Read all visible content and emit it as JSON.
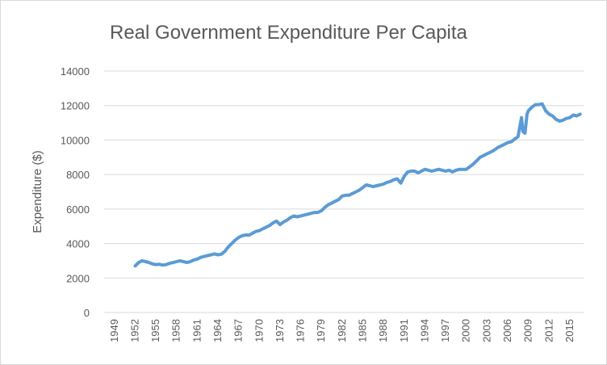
{
  "chart_data": {
    "type": "line",
    "title": "Real Government Expenditure Per Capita",
    "xlabel": "",
    "ylabel": "Expenditure ($)",
    "ylim": [
      0,
      14000
    ],
    "yticks": [
      0,
      2000,
      4000,
      6000,
      8000,
      10000,
      12000,
      14000
    ],
    "ytick_labels": [
      "0",
      "2000",
      "4000",
      "6000",
      "8000",
      "10000",
      "12000",
      "14000"
    ],
    "xlim": [
      1947.5,
      2017
    ],
    "xticks": [
      1949,
      1952,
      1955,
      1958,
      1961,
      1964,
      1967,
      1970,
      1973,
      1976,
      1979,
      1982,
      1985,
      1988,
      1991,
      1994,
      1997,
      2000,
      2003,
      2006,
      2009,
      2012,
      2015
    ],
    "xtick_labels": [
      "1949",
      "1952",
      "1955",
      "1958",
      "1961",
      "1964",
      "1967",
      "1970",
      "1973",
      "1976",
      "1979",
      "1982",
      "1985",
      "1988",
      "1991",
      "1994",
      "1997",
      "2000",
      "2003",
      "2006",
      "2009",
      "2012",
      "2015"
    ],
    "grid": true,
    "legend": "none",
    "series": [
      {
        "color": "#5b9bd5",
        "x": [
          1952.0,
          1952.5,
          1953.0,
          1953.5,
          1954.0,
          1954.5,
          1955.0,
          1955.5,
          1956.0,
          1956.5,
          1957.0,
          1957.5,
          1958.0,
          1958.5,
          1959.0,
          1959.5,
          1960.0,
          1960.5,
          1961.0,
          1961.5,
          1962.0,
          1962.5,
          1963.0,
          1963.5,
          1964.0,
          1964.5,
          1965.0,
          1965.5,
          1966.0,
          1966.5,
          1967.0,
          1967.5,
          1968.0,
          1968.5,
          1969.0,
          1969.5,
          1970.0,
          1970.5,
          1971.0,
          1971.5,
          1972.0,
          1972.5,
          1973.0,
          1973.5,
          1974.0,
          1974.5,
          1975.0,
          1975.5,
          1976.0,
          1976.5,
          1977.0,
          1977.5,
          1978.0,
          1978.5,
          1979.0,
          1979.5,
          1980.0,
          1980.5,
          1981.0,
          1981.5,
          1982.0,
          1982.5,
          1983.0,
          1983.5,
          1984.0,
          1984.5,
          1985.0,
          1985.5,
          1986.0,
          1986.5,
          1987.0,
          1987.5,
          1988.0,
          1988.5,
          1989.0,
          1989.5,
          1990.0,
          1990.5,
          1991.0,
          1991.5,
          1992.0,
          1992.5,
          1993.0,
          1993.5,
          1994.0,
          1994.5,
          1995.0,
          1995.5,
          1996.0,
          1996.5,
          1997.0,
          1997.5,
          1998.0,
          1998.5,
          1999.0,
          1999.5,
          2000.0,
          2000.5,
          2001.0,
          2001.5,
          2002.0,
          2002.5,
          2003.0,
          2003.5,
          2004.0,
          2004.5,
          2005.0,
          2005.5,
          2006.0,
          2006.5,
          2007.0,
          2007.5,
          2008.0,
          2008.2,
          2008.5,
          2008.8,
          2009.0,
          2009.5,
          2010.0,
          2010.5,
          2011.0,
          2011.5,
          2012.0,
          2012.5,
          2013.0,
          2013.5,
          2014.0,
          2014.5,
          2015.0,
          2015.5,
          2016.0,
          2016.5
        ],
        "y": [
          2700,
          2900,
          3000,
          2950,
          2900,
          2820,
          2780,
          2800,
          2750,
          2780,
          2850,
          2900,
          2950,
          3000,
          2950,
          2900,
          2950,
          3050,
          3100,
          3200,
          3250,
          3300,
          3350,
          3400,
          3350,
          3380,
          3550,
          3800,
          4000,
          4200,
          4350,
          4450,
          4500,
          4480,
          4600,
          4700,
          4750,
          4850,
          4950,
          5050,
          5200,
          5300,
          5100,
          5250,
          5350,
          5500,
          5600,
          5550,
          5600,
          5650,
          5700,
          5750,
          5800,
          5800,
          5900,
          6100,
          6250,
          6350,
          6450,
          6550,
          6750,
          6800,
          6800,
          6900,
          7000,
          7100,
          7250,
          7400,
          7350,
          7300,
          7350,
          7400,
          7450,
          7550,
          7600,
          7700,
          7750,
          7500,
          7900,
          8150,
          8200,
          8200,
          8100,
          8200,
          8300,
          8250,
          8200,
          8250,
          8300,
          8250,
          8200,
          8250,
          8150,
          8250,
          8300,
          8300,
          8300,
          8450,
          8600,
          8800,
          9000,
          9100,
          9200,
          9300,
          9400,
          9550,
          9650,
          9750,
          9850,
          9900,
          10050,
          10200,
          11300,
          10500,
          10400,
          11500,
          11700,
          11900,
          12050,
          12050,
          12100,
          11700,
          11500,
          11400,
          11200,
          11100,
          11150,
          11250,
          11300,
          11450,
          11400,
          11500
        ]
      }
    ]
  }
}
